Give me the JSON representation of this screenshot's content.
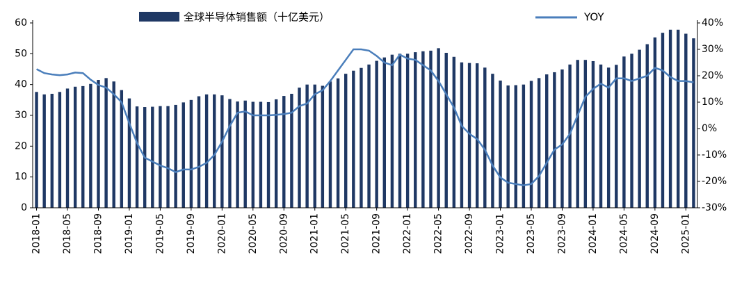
{
  "chart_data": {
    "type": "bar_line",
    "categories": [
      "2018-01",
      null,
      null,
      null,
      "2018-05",
      null,
      null,
      null,
      "2018-09",
      null,
      null,
      null,
      "2019-01",
      null,
      null,
      null,
      "2019-05",
      null,
      null,
      null,
      "2019-09",
      null,
      null,
      null,
      "2020-01",
      null,
      null,
      null,
      "2020-05",
      null,
      null,
      null,
      "2020-09",
      null,
      null,
      null,
      "2021-01",
      null,
      null,
      null,
      "2021-05",
      null,
      null,
      null,
      "2021-09",
      null,
      null,
      null,
      "2022-01",
      null,
      null,
      null,
      "2022-05",
      null,
      null,
      null,
      "2022-09",
      null,
      null,
      null,
      "2023-01",
      null,
      null,
      null,
      "2023-05",
      null,
      null,
      null,
      "2023-09",
      null,
      null,
      null,
      "2024-01",
      null,
      null,
      null,
      "2024-05",
      null,
      null,
      null,
      "2024-09",
      null,
      null,
      null,
      "2025-01",
      null
    ],
    "series": [
      {
        "name": "全球半导体销售额（十亿美元）",
        "type": "bar",
        "color": "#1f3864",
        "values": [
          37.6,
          36.8,
          37.0,
          37.6,
          38.7,
          39.3,
          39.5,
          40.2,
          41.5,
          42.1,
          41.0,
          38.2,
          35.5,
          32.9,
          32.7,
          32.8,
          33.0,
          33.0,
          33.4,
          34.2,
          35.0,
          36.2,
          36.8,
          36.8,
          36.5,
          35.3,
          34.5,
          34.8,
          34.4,
          34.4,
          34.3,
          35.2,
          36.3,
          37.0,
          39.0,
          40.0,
          40.0,
          39.6,
          41.0,
          42.0,
          43.5,
          44.5,
          45.4,
          46.5,
          47.7,
          48.8,
          49.7,
          50.0,
          50.0,
          50.5,
          50.8,
          51.0,
          51.8,
          50.3,
          49.0,
          47.2,
          47.0,
          46.9,
          45.5,
          43.5,
          41.3,
          39.7,
          39.8,
          40.0,
          41.2,
          42.1,
          43.3,
          44.0,
          44.9,
          46.5,
          48.0,
          48.0,
          47.6,
          46.5,
          45.5,
          46.4,
          49.1,
          50.0,
          51.3,
          53.1,
          55.3,
          56.8,
          57.8,
          57.8,
          56.5,
          55.0
        ]
      },
      {
        "name": "YOY",
        "type": "line",
        "axis": "y2",
        "color": "#4a7ebb",
        "values": [
          22.5,
          21,
          20.5,
          20.2,
          20.5,
          21.2,
          21.0,
          18.5,
          16.5,
          15.5,
          13.0,
          10.0,
          2,
          -5.5,
          -11,
          -12.5,
          -14,
          -15,
          -16.5,
          -15.5,
          -15.5,
          -14.5,
          -13,
          -10,
          -5,
          1,
          6,
          6.5,
          5,
          5,
          5,
          5.2,
          5.5,
          6,
          8.5,
          9.5,
          13,
          14.5,
          18,
          22,
          26,
          30,
          30,
          29.5,
          27.5,
          25,
          24,
          28,
          26.5,
          26,
          24,
          22,
          18,
          13,
          8,
          1,
          -2,
          -4,
          -8,
          -14,
          -18.5,
          -20.5,
          -21,
          -21.5,
          -21,
          -18,
          -13,
          -8,
          -6,
          -2,
          5,
          12,
          15,
          17,
          15.5,
          19,
          19,
          18,
          19,
          20,
          23,
          22,
          19.5,
          18,
          18,
          17.5
        ]
      }
    ],
    "ylim": [
      0,
      60
    ],
    "yticks": [
      0,
      10,
      20,
      30,
      40,
      50,
      60
    ],
    "y2lim": [
      -30,
      40
    ],
    "y2ticks": [
      {
        "value": -30,
        "label": "-30%"
      },
      {
        "value": -20,
        "label": "-20%"
      },
      {
        "value": -10,
        "label": "-10%"
      },
      {
        "value": 0,
        "label": "0%"
      },
      {
        "value": 10,
        "label": "10%"
      },
      {
        "value": 20,
        "label": "20%"
      },
      {
        "value": 30,
        "label": "30%"
      },
      {
        "value": 40,
        "label": "40%"
      }
    ]
  }
}
